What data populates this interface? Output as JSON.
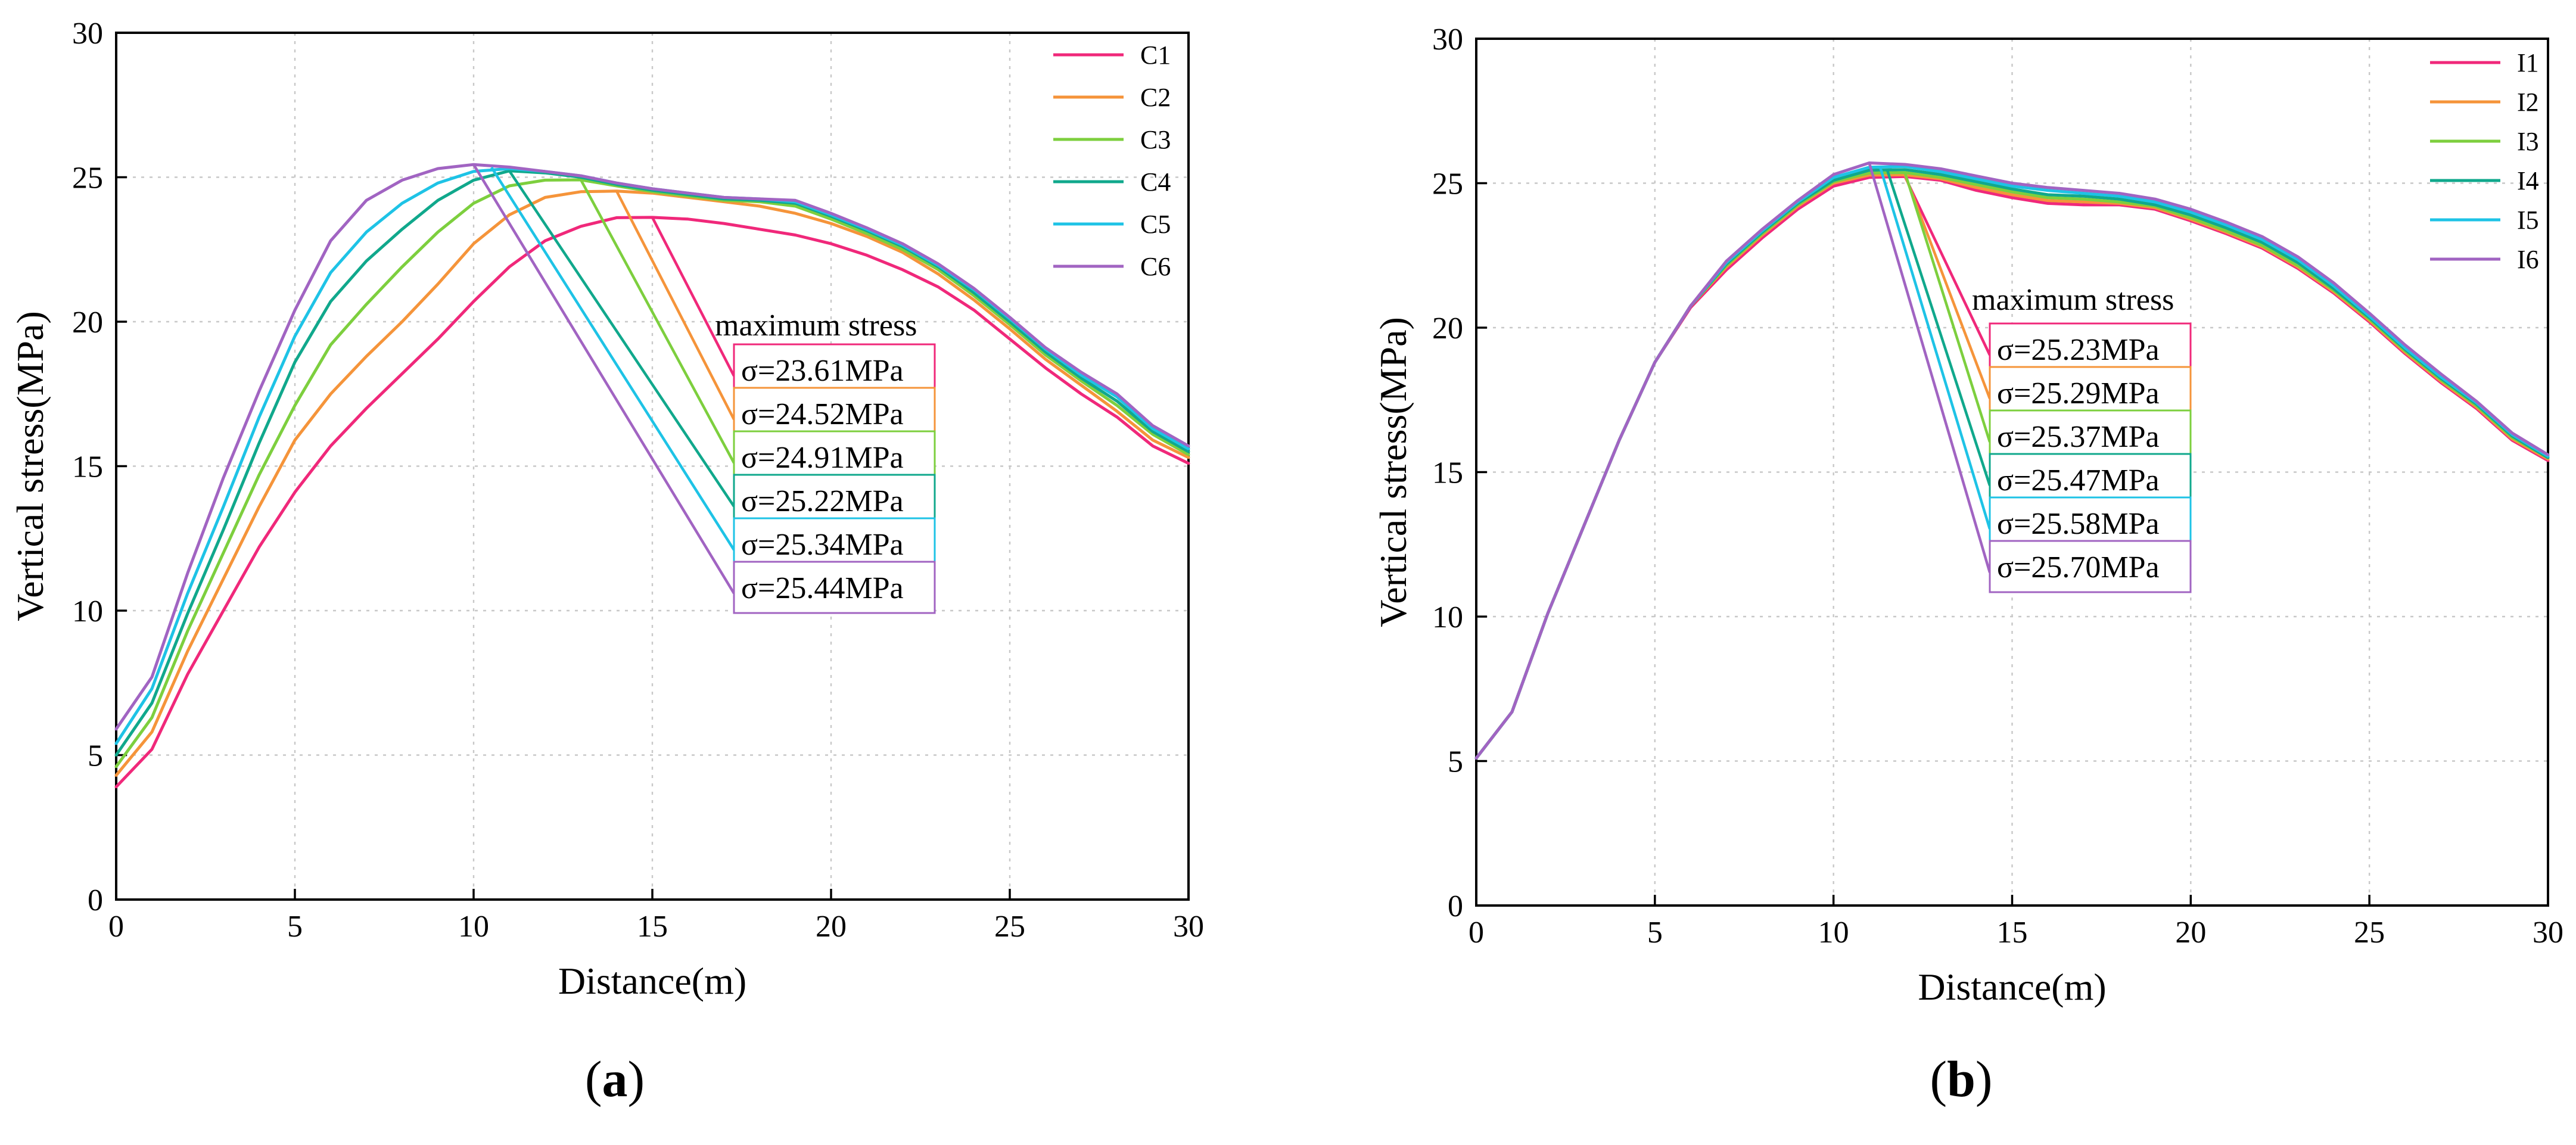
{
  "chart_data": [
    {
      "type": "line",
      "panel": "a",
      "xlabel": "Distance(m)",
      "ylabel": "Vertical stress(MPa)",
      "xlim": [
        0,
        30
      ],
      "ylim": [
        0,
        30
      ],
      "xticks": [
        0,
        5,
        10,
        15,
        20,
        25,
        30
      ],
      "yticks": [
        0,
        5,
        10,
        15,
        20,
        25,
        30
      ],
      "grid": true,
      "legend_position": "top-right",
      "annotation_title": "maximum stress",
      "x": [
        0,
        1,
        2,
        3,
        4,
        5,
        6,
        7,
        8,
        9,
        10,
        11,
        12,
        13,
        14,
        15,
        16,
        17,
        18,
        19,
        20,
        21,
        22,
        23,
        24,
        25,
        26,
        27,
        28,
        29,
        30
      ],
      "series": [
        {
          "name": "C1",
          "color": "#f0287a",
          "annotation": "σ=23.61MPa",
          "peak_x": 15,
          "peak_y": 23.61,
          "values": [
            3.9,
            5.2,
            7.8,
            10.0,
            12.2,
            14.1,
            15.7,
            17.0,
            18.2,
            19.4,
            20.7,
            21.9,
            22.8,
            23.3,
            23.6,
            23.61,
            23.55,
            23.4,
            23.2,
            23.0,
            22.7,
            22.3,
            21.8,
            21.2,
            20.4,
            19.4,
            18.4,
            17.5,
            16.7,
            15.7,
            15.1
          ]
        },
        {
          "name": "C2",
          "color": "#f5943a",
          "annotation": "σ=24.52MPa",
          "peak_x": 14,
          "peak_y": 24.52,
          "values": [
            4.3,
            5.8,
            8.6,
            11.1,
            13.6,
            15.9,
            17.5,
            18.8,
            20.0,
            21.3,
            22.7,
            23.7,
            24.3,
            24.5,
            24.52,
            24.45,
            24.3,
            24.15,
            24.0,
            23.75,
            23.4,
            22.95,
            22.4,
            21.65,
            20.75,
            19.75,
            18.7,
            17.8,
            16.9,
            15.9,
            15.3
          ]
        },
        {
          "name": "C3",
          "color": "#7dcf3e",
          "annotation": "σ=24.91MPa",
          "peak_x": 13,
          "peak_y": 24.91,
          "values": [
            4.6,
            6.3,
            9.3,
            12.0,
            14.7,
            17.1,
            19.2,
            20.6,
            21.9,
            23.1,
            24.1,
            24.7,
            24.9,
            24.91,
            24.7,
            24.5,
            24.35,
            24.2,
            24.15,
            24.0,
            23.55,
            23.05,
            22.5,
            21.8,
            20.9,
            19.9,
            18.85,
            17.95,
            17.1,
            16.1,
            15.4
          ]
        },
        {
          "name": "C4",
          "color": "#10a88c",
          "annotation": "σ=25.22MPa",
          "peak_x": 11,
          "peak_y": 25.22,
          "values": [
            5.0,
            6.8,
            9.9,
            12.8,
            15.8,
            18.6,
            20.7,
            22.1,
            23.2,
            24.2,
            24.9,
            25.22,
            25.15,
            25.0,
            24.75,
            24.55,
            24.4,
            24.25,
            24.2,
            24.1,
            23.65,
            23.15,
            22.6,
            21.9,
            21.0,
            20.0,
            18.95,
            18.05,
            17.25,
            16.2,
            15.5
          ]
        },
        {
          "name": "C5",
          "color": "#1ec3e6",
          "annotation": "σ=25.34MPa",
          "peak_x": 10.5,
          "peak_y": 25.34,
          "values": [
            5.4,
            7.3,
            10.6,
            13.6,
            16.7,
            19.5,
            21.7,
            23.1,
            24.1,
            24.8,
            25.2,
            25.3,
            25.2,
            25.05,
            24.8,
            24.6,
            24.45,
            24.3,
            24.25,
            24.15,
            23.7,
            23.2,
            22.65,
            21.95,
            21.1,
            20.1,
            19.05,
            18.15,
            17.4,
            16.3,
            15.6
          ]
        },
        {
          "name": "C6",
          "color": "#a164c2",
          "annotation": "σ=25.44MPa",
          "peak_x": 10,
          "peak_y": 25.44,
          "values": [
            5.9,
            7.7,
            11.3,
            14.6,
            17.6,
            20.4,
            22.8,
            24.2,
            24.9,
            25.3,
            25.44,
            25.35,
            25.2,
            25.05,
            24.8,
            24.6,
            24.45,
            24.3,
            24.25,
            24.2,
            23.75,
            23.25,
            22.7,
            22.0,
            21.15,
            20.15,
            19.1,
            18.25,
            17.5,
            16.4,
            15.7
          ]
        }
      ]
    },
    {
      "type": "line",
      "panel": "b",
      "xlabel": "Distance(m)",
      "ylabel": "Vertical stress(MPa)",
      "xlim": [
        0,
        30
      ],
      "ylim": [
        0,
        30
      ],
      "xticks": [
        0,
        5,
        10,
        15,
        20,
        25,
        30
      ],
      "yticks": [
        0,
        5,
        10,
        15,
        20,
        25,
        30
      ],
      "grid": true,
      "legend_position": "top-right",
      "annotation_title": "maximum stress",
      "x": [
        0,
        1,
        2,
        3,
        4,
        5,
        6,
        7,
        8,
        9,
        10,
        11,
        12,
        13,
        14,
        15,
        16,
        17,
        18,
        19,
        20,
        21,
        22,
        23,
        24,
        25,
        26,
        27,
        28,
        29,
        30
      ],
      "series": [
        {
          "name": "I1",
          "color": "#f0287a",
          "annotation": "σ=25.23MPa",
          "peak_x": 12,
          "peak_y": 25.23,
          "values": [
            5.1,
            6.7,
            10.1,
            13.1,
            16.1,
            18.8,
            20.7,
            22.0,
            23.1,
            24.1,
            24.9,
            25.2,
            25.23,
            25.1,
            24.75,
            24.5,
            24.3,
            24.25,
            24.25,
            24.1,
            23.7,
            23.25,
            22.75,
            22.05,
            21.2,
            20.2,
            19.1,
            18.1,
            17.2,
            16.1,
            15.4
          ]
        },
        {
          "name": "I2",
          "color": "#f5943a",
          "annotation": "σ=25.29MPa",
          "peak_x": 12,
          "peak_y": 25.29,
          "values": [
            5.1,
            6.7,
            10.1,
            13.1,
            16.1,
            18.8,
            20.75,
            22.1,
            23.2,
            24.2,
            25.0,
            25.28,
            25.29,
            25.15,
            24.85,
            24.6,
            24.4,
            24.35,
            24.3,
            24.15,
            23.75,
            23.3,
            22.8,
            22.1,
            21.25,
            20.25,
            19.15,
            18.15,
            17.25,
            16.15,
            15.45
          ]
        },
        {
          "name": "I3",
          "color": "#7dcf3e",
          "annotation": "σ=25.37MPa",
          "peak_x": 12,
          "peak_y": 25.37,
          "values": [
            5.1,
            6.7,
            10.1,
            13.1,
            16.1,
            18.8,
            20.75,
            22.15,
            23.25,
            24.25,
            25.05,
            25.35,
            25.37,
            25.2,
            24.95,
            24.7,
            24.5,
            24.45,
            24.35,
            24.2,
            23.8,
            23.35,
            22.85,
            22.15,
            21.3,
            20.3,
            19.2,
            18.2,
            17.3,
            16.2,
            15.5
          ]
        },
        {
          "name": "I4",
          "color": "#10a88c",
          "annotation": "σ=25.47MPa",
          "peak_x": 11.5,
          "peak_y": 25.47,
          "values": [
            5.1,
            6.7,
            10.1,
            13.1,
            16.1,
            18.8,
            20.75,
            22.2,
            23.3,
            24.3,
            25.1,
            25.45,
            25.47,
            25.3,
            25.05,
            24.8,
            24.6,
            24.55,
            24.45,
            24.25,
            23.9,
            23.45,
            22.95,
            22.25,
            21.35,
            20.35,
            19.25,
            18.25,
            17.35,
            16.25,
            15.5
          ]
        },
        {
          "name": "I5",
          "color": "#1ec3e6",
          "annotation": "σ=25.58MPa",
          "peak_x": 11.3,
          "peak_y": 25.58,
          "values": [
            5.1,
            6.7,
            10.1,
            13.1,
            16.1,
            18.8,
            20.75,
            22.25,
            23.35,
            24.35,
            25.2,
            25.55,
            25.58,
            25.4,
            25.15,
            24.9,
            24.75,
            24.65,
            24.55,
            24.35,
            24.0,
            23.55,
            23.05,
            22.35,
            21.45,
            20.4,
            19.3,
            18.3,
            17.4,
            16.3,
            15.55
          ]
        },
        {
          "name": "I6",
          "color": "#a164c2",
          "annotation": "σ=25.70MPa",
          "peak_x": 11,
          "peak_y": 25.7,
          "values": [
            5.1,
            6.7,
            10.1,
            13.1,
            16.1,
            18.8,
            20.75,
            22.3,
            23.4,
            24.4,
            25.3,
            25.7,
            25.65,
            25.5,
            25.25,
            25.0,
            24.85,
            24.75,
            24.65,
            24.45,
            24.1,
            23.65,
            23.15,
            22.45,
            21.55,
            20.5,
            19.4,
            18.4,
            17.45,
            16.35,
            15.6
          ]
        }
      ]
    }
  ],
  "panels": {
    "a": {
      "open": "(",
      "letter": "a",
      "close": ")"
    },
    "b": {
      "open": "(",
      "letter": "b",
      "close": ")"
    }
  }
}
